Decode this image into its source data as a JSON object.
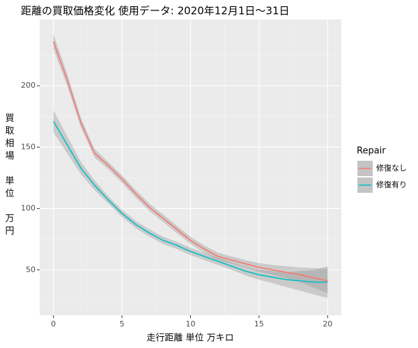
{
  "chart_data": {
    "type": "line",
    "title": "距離の買取価格変化 使用データ: 2020年12月1日～31日",
    "x_label": "走行距離 単位 万キロ",
    "y_label": "買取相場 単位 万円",
    "legend_title": "Repair",
    "legend": "right",
    "grid": true,
    "x": [
      0,
      1,
      2,
      3,
      4,
      5,
      6,
      7,
      8,
      9,
      10,
      11,
      12,
      13,
      14,
      15,
      16,
      17,
      18,
      19,
      20
    ],
    "series": [
      {
        "name": "修復なし",
        "color": "#F8766D",
        "values": [
          236,
          205,
          170,
          145,
          135,
          124,
          112,
          101,
          92,
          83,
          74,
          67,
          61,
          58,
          55,
          52,
          50,
          48,
          46,
          43.5,
          41
        ],
        "upper": [
          242,
          210,
          174,
          148.5,
          138,
          127,
          115,
          104,
          95,
          86,
          77,
          70,
          64,
          61,
          58,
          55.5,
          54,
          53,
          52,
          51.5,
          51
        ],
        "lower": [
          230,
          200,
          166,
          141.5,
          132,
          121,
          109,
          98,
          89,
          80,
          71,
          64,
          58,
          55,
          52,
          48.5,
          46,
          43,
          40,
          35.5,
          31
        ]
      },
      {
        "name": "修復有り",
        "color": "#00BFC4",
        "values": [
          171,
          152,
          133,
          119,
          107,
          96,
          87,
          80,
          74,
          70,
          65,
          61,
          57,
          53,
          49,
          46,
          44,
          42,
          41,
          40,
          40
        ],
        "upper": [
          180,
          159,
          138,
          123,
          110,
          99,
          90,
          83,
          77,
          73,
          68,
          64,
          60,
          56,
          52.5,
          50,
          49,
          48,
          49,
          50,
          53
        ],
        "lower": [
          162,
          145,
          128,
          115,
          104,
          93,
          84,
          77,
          71,
          67,
          62,
          58,
          54,
          50,
          45.5,
          42,
          39,
          36,
          33,
          30,
          27
        ]
      }
    ],
    "xlim": [
      -1,
      21
    ],
    "xticks": [
      0,
      5,
      10,
      15,
      20
    ],
    "ylim": [
      13,
      254
    ],
    "yticks": [
      50,
      100,
      150,
      200
    ]
  }
}
